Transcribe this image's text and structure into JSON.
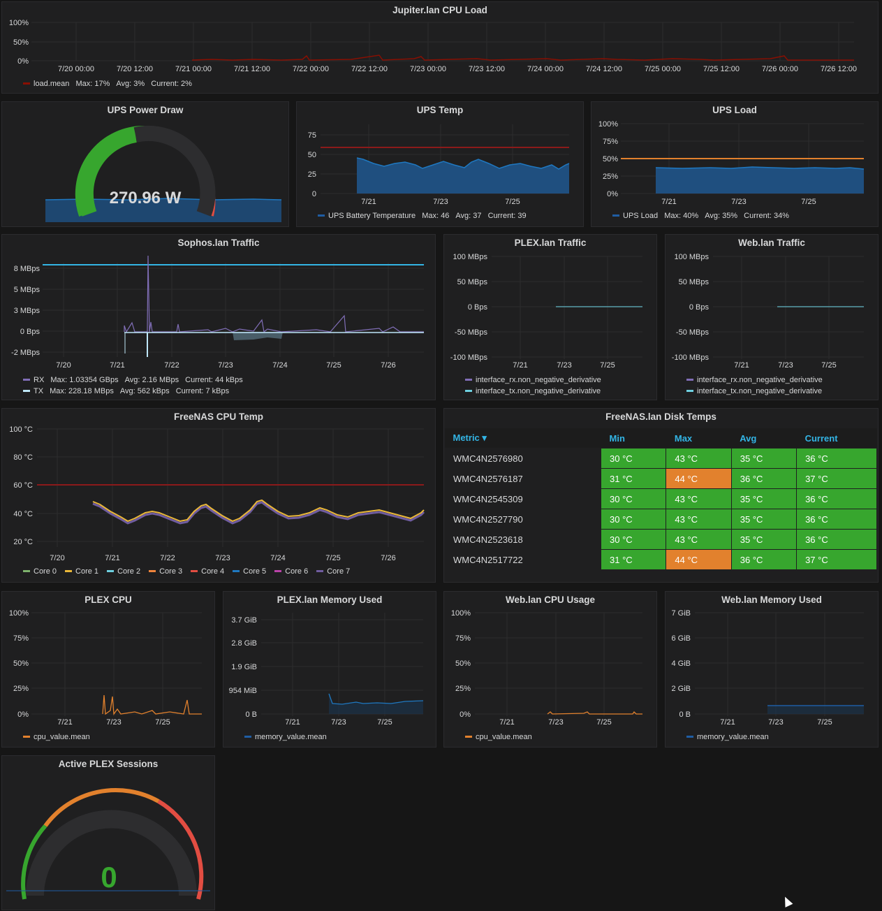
{
  "colors": {
    "panel_bg": "#1f1f20",
    "grid": "#2c2c2e",
    "threshold_red": "#8b1a1a",
    "green": "#37a62e",
    "orange": "#e2812d",
    "red": "#e24d42",
    "blue": "#1f5da3",
    "purple": "#806eb7",
    "light_blue": "#bfe7f9",
    "cyan_line": "#33b5e5"
  },
  "cpu_load": {
    "title": "Jupiter.lan CPU Load",
    "y_ticks": [
      "100%",
      "50%",
      "0%"
    ],
    "x_ticks": [
      "7/20 00:00",
      "7/20 12:00",
      "7/21 00:00",
      "7/21 12:00",
      "7/22 00:00",
      "7/22 12:00",
      "7/23 00:00",
      "7/23 12:00",
      "7/24 00:00",
      "7/24 12:00",
      "7/25 00:00",
      "7/25 12:00",
      "7/26 00:00",
      "7/26 12:00"
    ],
    "legend": {
      "name": "load.mean",
      "max": "Max: 17%",
      "avg": "Avg: 3%",
      "current": "Current: 2%"
    }
  },
  "ups_power": {
    "title": "UPS Power Draw",
    "value": "270.96 W"
  },
  "ups_temp": {
    "title": "UPS Temp",
    "y_ticks": [
      "75",
      "50",
      "25",
      "0"
    ],
    "x_ticks": [
      "7/21",
      "7/23",
      "7/25"
    ],
    "legend": {
      "name": "UPS Battery Temperature",
      "max": "Max: 46",
      "avg": "Avg: 37",
      "current": "Current: 39"
    }
  },
  "ups_load": {
    "title": "UPS Load",
    "y_ticks": [
      "100%",
      "75%",
      "50%",
      "25%",
      "0%"
    ],
    "x_ticks": [
      "7/21",
      "7/23",
      "7/25"
    ],
    "legend": {
      "name": "UPS Load",
      "max": "Max: 40%",
      "avg": "Avg: 35%",
      "current": "Current: 34%"
    }
  },
  "sophos": {
    "title": "Sophos.lan Traffic",
    "y_ticks": [
      "8 MBps",
      "5 MBps",
      "3 MBps",
      "0 Bps",
      "-2 MBps"
    ],
    "x_ticks": [
      "7/20",
      "7/21",
      "7/22",
      "7/23",
      "7/24",
      "7/25",
      "7/26"
    ],
    "legend_rx": {
      "name": "RX",
      "max": "Max: 1.03354 GBps",
      "avg": "Avg: 2.16 MBps",
      "current": "Current: 44 kBps"
    },
    "legend_tx": {
      "name": "TX",
      "max": "Max: 228.18 MBps",
      "avg": "Avg: 562 kBps",
      "current": "Current: 7 kBps"
    }
  },
  "plex_traffic": {
    "title": "PLEX.lan Traffic",
    "y_ticks": [
      "100 MBps",
      "50 MBps",
      "0 Bps",
      "-50 MBps",
      "-100 MBps"
    ],
    "x_ticks": [
      "7/21",
      "7/23",
      "7/25"
    ],
    "legend": [
      "interface_rx.non_negative_derivative",
      "interface_tx.non_negative_derivative"
    ]
  },
  "web_traffic": {
    "title": "Web.lan Traffic",
    "y_ticks": [
      "100 MBps",
      "50 MBps",
      "0 Bps",
      "-50 MBps",
      "-100 MBps"
    ],
    "x_ticks": [
      "7/21",
      "7/23",
      "7/25"
    ],
    "legend": [
      "interface_rx.non_negative_derivative",
      "interface_tx.non_negative_derivative"
    ]
  },
  "freenas_cpu": {
    "title": "FreeNAS CPU Temp",
    "y_ticks": [
      "100 °C",
      "80 °C",
      "60 °C",
      "40 °C",
      "20 °C"
    ],
    "x_ticks": [
      "7/20",
      "7/21",
      "7/22",
      "7/23",
      "7/24",
      "7/25",
      "7/26"
    ],
    "legend": [
      {
        "name": "Core 0",
        "color": "#7eb26d"
      },
      {
        "name": "Core 1",
        "color": "#eab839"
      },
      {
        "name": "Core 2",
        "color": "#6ed0e0"
      },
      {
        "name": "Core 3",
        "color": "#ef843c"
      },
      {
        "name": "Core 4",
        "color": "#e24d42"
      },
      {
        "name": "Core 5",
        "color": "#1f78c1"
      },
      {
        "name": "Core 6",
        "color": "#ba43a9"
      },
      {
        "name": "Core 7",
        "color": "#705da0"
      }
    ]
  },
  "disk_temps": {
    "title": "FreeNAS.lan Disk Temps",
    "headers": [
      "Metric ▾",
      "Min",
      "Max",
      "Avg",
      "Current"
    ],
    "rows": [
      [
        "WMC4N2576980",
        "30 °C",
        "43 °C",
        "35 °C",
        "36 °C"
      ],
      [
        "WMC4N2576187",
        "31 °C",
        "44 °C",
        "36 °C",
        "37 °C"
      ],
      [
        "WMC4N2545309",
        "30 °C",
        "43 °C",
        "35 °C",
        "36 °C"
      ],
      [
        "WMC4N2527790",
        "30 °C",
        "43 °C",
        "35 °C",
        "36 °C"
      ],
      [
        "WMC4N2523618",
        "30 °C",
        "43 °C",
        "35 °C",
        "36 °C"
      ],
      [
        "WMC4N2517722",
        "31 °C",
        "44 °C",
        "36 °C",
        "37 °C"
      ]
    ]
  },
  "plex_cpu": {
    "title": "PLEX CPU",
    "y_ticks": [
      "100%",
      "75%",
      "50%",
      "25%",
      "0%"
    ],
    "x_ticks": [
      "7/21",
      "7/23",
      "7/25"
    ],
    "legend": "cpu_value.mean"
  },
  "plex_mem": {
    "title": "PLEX.lan Memory Used",
    "y_ticks": [
      "3.7 GiB",
      "2.8 GiB",
      "1.9 GiB",
      "954 MiB",
      "0 B"
    ],
    "x_ticks": [
      "7/21",
      "7/23",
      "7/25"
    ],
    "legend": "memory_value.mean"
  },
  "web_cpu": {
    "title": "Web.lan CPU Usage",
    "y_ticks": [
      "100%",
      "75%",
      "50%",
      "25%",
      "0%"
    ],
    "x_ticks": [
      "7/21",
      "7/23",
      "7/25"
    ],
    "legend": "cpu_value.mean"
  },
  "web_mem": {
    "title": "Web.lan Memory Used",
    "y_ticks": [
      "7 GiB",
      "6 GiB",
      "4 GiB",
      "2 GiB",
      "0 B"
    ],
    "x_ticks": [
      "7/21",
      "7/23",
      "7/25"
    ],
    "legend": "memory_value.mean"
  },
  "plex_sessions": {
    "title": "Active PLEX Sessions",
    "value": "0"
  }
}
